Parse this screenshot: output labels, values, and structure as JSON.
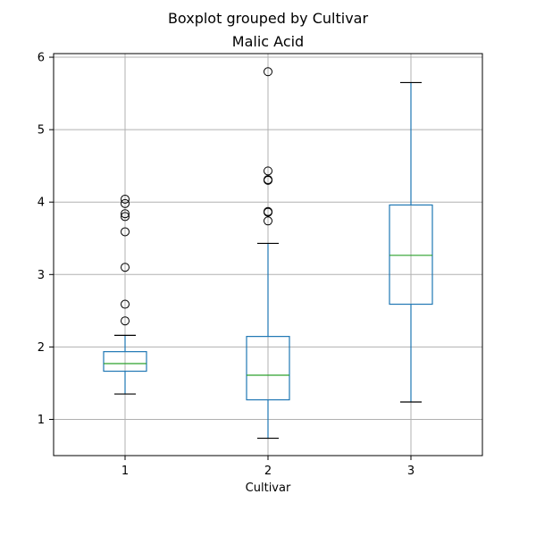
{
  "chart_data": {
    "type": "boxplot",
    "title": "Boxplot grouped by Cultivar",
    "subtitle": "Malic Acid",
    "xlabel": "Cultivar",
    "ylabel": "",
    "ylim": [
      0.5,
      6.05
    ],
    "yticks": [
      1,
      2,
      3,
      4,
      5,
      6
    ],
    "categories": [
      "1",
      "2",
      "3"
    ],
    "grid": true,
    "colors": {
      "box": "#1f77b4",
      "median": "#2ca02c",
      "whisker": "#1f77b4",
      "cap": "#000000",
      "outlier": "#000000",
      "grid": "#b0b0b0",
      "axis": "#000000"
    },
    "boxes": [
      {
        "category": "1",
        "whisker_low": 1.35,
        "q1": 1.665,
        "median": 1.77,
        "q3": 1.935,
        "whisker_high": 2.16,
        "outliers": [
          2.36,
          2.59,
          3.1,
          3.59,
          3.8,
          3.84,
          3.98,
          4.04
        ]
      },
      {
        "category": "2",
        "whisker_low": 0.74,
        "q1": 1.27,
        "median": 1.61,
        "q3": 2.145,
        "whisker_high": 3.43,
        "outliers": [
          3.74,
          3.86,
          3.87,
          4.3,
          4.31,
          4.43,
          5.8
        ]
      },
      {
        "category": "3",
        "whisker_low": 1.24,
        "q1": 2.59,
        "median": 3.265,
        "q3": 3.96,
        "whisker_high": 5.65,
        "outliers": []
      }
    ]
  }
}
